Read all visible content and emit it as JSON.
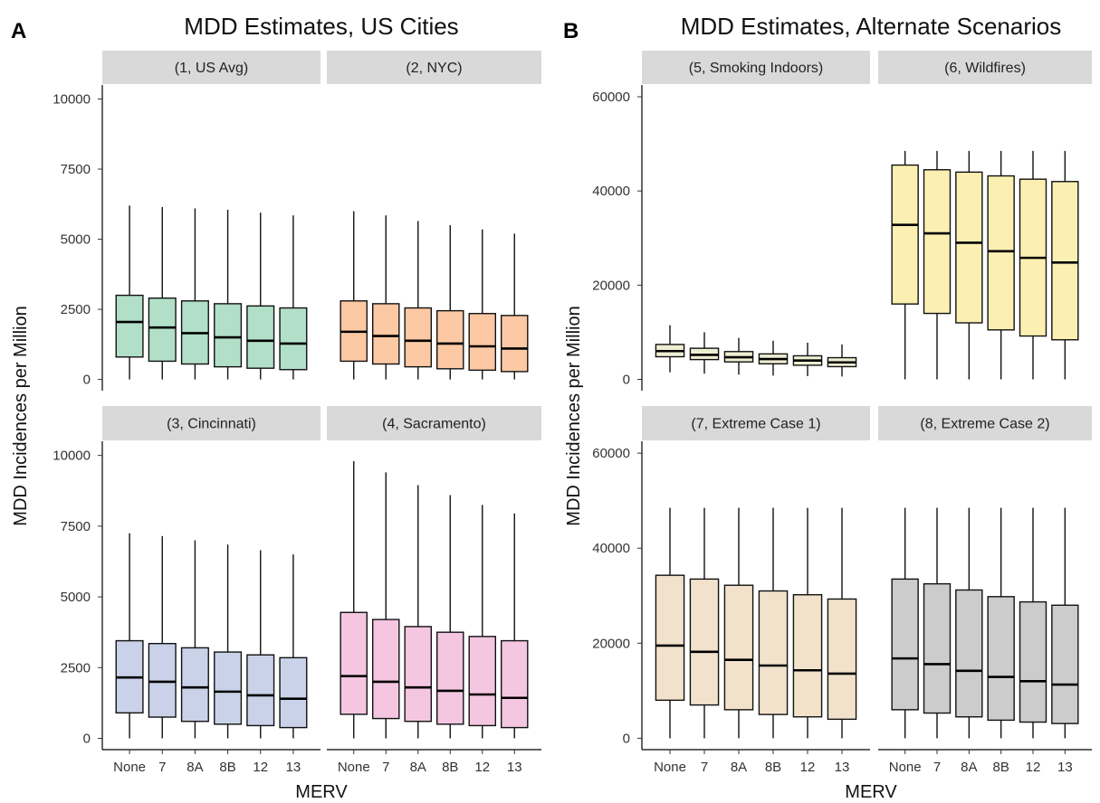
{
  "chart_data": [
    {
      "type": "box",
      "panel_letter": "A",
      "title": "MDD Estimates, US Cities",
      "xlabel": "MERV",
      "ylabel": "MDD Incidences per Million",
      "categories": [
        "None",
        "7",
        "8A",
        "8B",
        "12",
        "13"
      ],
      "ylim": [
        -400,
        10500
      ],
      "yticks": [
        0,
        2500,
        5000,
        7500,
        10000
      ],
      "ytick_labels": [
        "0",
        "2500",
        "5000",
        "7500",
        "10000"
      ],
      "grid": false,
      "facets": [
        {
          "label": "(1, US Avg)",
          "fill": "#b2dfc8",
          "boxes": [
            {
              "low": 0,
              "q1": 800,
              "median": 2050,
              "q3": 3000,
              "high": 6200
            },
            {
              "low": 0,
              "q1": 650,
              "median": 1850,
              "q3": 2900,
              "high": 6150
            },
            {
              "low": 0,
              "q1": 550,
              "median": 1650,
              "q3": 2800,
              "high": 6100
            },
            {
              "low": 0,
              "q1": 450,
              "median": 1500,
              "q3": 2700,
              "high": 6050
            },
            {
              "low": 0,
              "q1": 400,
              "median": 1380,
              "q3": 2620,
              "high": 5950
            },
            {
              "low": 0,
              "q1": 350,
              "median": 1280,
              "q3": 2550,
              "high": 5850
            }
          ]
        },
        {
          "label": "(2, NYC)",
          "fill": "#fcc9a4",
          "boxes": [
            {
              "low": 0,
              "q1": 650,
              "median": 1700,
              "q3": 2800,
              "high": 6000
            },
            {
              "low": 0,
              "q1": 550,
              "median": 1550,
              "q3": 2700,
              "high": 5850
            },
            {
              "low": 0,
              "q1": 450,
              "median": 1380,
              "q3": 2550,
              "high": 5650
            },
            {
              "low": 0,
              "q1": 380,
              "median": 1280,
              "q3": 2450,
              "high": 5500
            },
            {
              "low": 0,
              "q1": 330,
              "median": 1180,
              "q3": 2350,
              "high": 5350
            },
            {
              "low": 0,
              "q1": 280,
              "median": 1100,
              "q3": 2280,
              "high": 5200
            }
          ]
        },
        {
          "label": "(3, Cincinnati)",
          "fill": "#c9d2e8",
          "boxes": [
            {
              "low": 0,
              "q1": 900,
              "median": 2150,
              "q3": 3450,
              "high": 7250
            },
            {
              "low": 0,
              "q1": 750,
              "median": 2000,
              "q3": 3350,
              "high": 7150
            },
            {
              "low": 0,
              "q1": 600,
              "median": 1800,
              "q3": 3200,
              "high": 7000
            },
            {
              "low": 0,
              "q1": 500,
              "median": 1650,
              "q3": 3050,
              "high": 6850
            },
            {
              "low": 0,
              "q1": 450,
              "median": 1520,
              "q3": 2950,
              "high": 6650
            },
            {
              "low": 0,
              "q1": 380,
              "median": 1400,
              "q3": 2850,
              "high": 6500
            }
          ]
        },
        {
          "label": "(4, Sacramento)",
          "fill": "#f4c6e1",
          "boxes": [
            {
              "low": 0,
              "q1": 850,
              "median": 2200,
              "q3": 4450,
              "high": 9800
            },
            {
              "low": 0,
              "q1": 700,
              "median": 2000,
              "q3": 4200,
              "high": 9400
            },
            {
              "low": 0,
              "q1": 600,
              "median": 1800,
              "q3": 3950,
              "high": 8950
            },
            {
              "low": 0,
              "q1": 500,
              "median": 1680,
              "q3": 3750,
              "high": 8600
            },
            {
              "low": 0,
              "q1": 450,
              "median": 1550,
              "q3": 3600,
              "high": 8250
            },
            {
              "low": 0,
              "q1": 380,
              "median": 1430,
              "q3": 3450,
              "high": 7950
            }
          ]
        }
      ]
    },
    {
      "type": "box",
      "panel_letter": "B",
      "title": "MDD Estimates, Alternate Scenarios",
      "xlabel": "MERV",
      "ylabel": "MDD Incidences per Million",
      "categories": [
        "None",
        "7",
        "8A",
        "8B",
        "12",
        "13"
      ],
      "ylim": [
        -2400,
        62500
      ],
      "yticks": [
        0,
        20000,
        40000,
        60000
      ],
      "ytick_labels": [
        "0",
        "20000",
        "40000",
        "60000"
      ],
      "grid": false,
      "facets": [
        {
          "label": "(5, Smoking Indoors)",
          "fill": "#eeeed3",
          "boxes": [
            {
              "low": 1500,
              "q1": 4800,
              "median": 6000,
              "q3": 7400,
              "high": 11500
            },
            {
              "low": 1200,
              "q1": 4200,
              "median": 5200,
              "q3": 6600,
              "high": 10000
            },
            {
              "low": 1000,
              "q1": 3700,
              "median": 4700,
              "q3": 5900,
              "high": 8800
            },
            {
              "low": 800,
              "q1": 3300,
              "median": 4300,
              "q3": 5400,
              "high": 8200
            },
            {
              "low": 700,
              "q1": 3000,
              "median": 4000,
              "q3": 5000,
              "high": 7800
            },
            {
              "low": 600,
              "q1": 2700,
              "median": 3600,
              "q3": 4600,
              "high": 7400
            }
          ]
        },
        {
          "label": "(6, Wildfires)",
          "fill": "#fbf0b2",
          "boxes": [
            {
              "low": 0,
              "q1": 16000,
              "median": 32800,
              "q3": 45500,
              "high": 48500
            },
            {
              "low": 0,
              "q1": 14000,
              "median": 31000,
              "q3": 44500,
              "high": 48500
            },
            {
              "low": 0,
              "q1": 12000,
              "median": 29000,
              "q3": 44000,
              "high": 48500
            },
            {
              "low": 0,
              "q1": 10500,
              "median": 27200,
              "q3": 43200,
              "high": 48500
            },
            {
              "low": 0,
              "q1": 9200,
              "median": 25800,
              "q3": 42500,
              "high": 48500
            },
            {
              "low": 0,
              "q1": 8400,
              "median": 24800,
              "q3": 42000,
              "high": 48500
            }
          ]
        },
        {
          "label": "(7, Extreme Case 1)",
          "fill": "#f2e2cb",
          "boxes": [
            {
              "low": 0,
              "q1": 8000,
              "median": 19500,
              "q3": 34300,
              "high": 48500
            },
            {
              "low": 0,
              "q1": 7000,
              "median": 18200,
              "q3": 33500,
              "high": 48500
            },
            {
              "low": 0,
              "q1": 6000,
              "median": 16500,
              "q3": 32200,
              "high": 48500
            },
            {
              "low": 0,
              "q1": 5000,
              "median": 15300,
              "q3": 31000,
              "high": 48500
            },
            {
              "low": 0,
              "q1": 4500,
              "median": 14300,
              "q3": 30200,
              "high": 48500
            },
            {
              "low": 0,
              "q1": 4000,
              "median": 13600,
              "q3": 29300,
              "high": 48500
            }
          ]
        },
        {
          "label": "(8, Extreme Case 2)",
          "fill": "#cccccc",
          "boxes": [
            {
              "low": 0,
              "q1": 6000,
              "median": 16800,
              "q3": 33500,
              "high": 48500
            },
            {
              "low": 0,
              "q1": 5300,
              "median": 15600,
              "q3": 32500,
              "high": 48500
            },
            {
              "low": 0,
              "q1": 4500,
              "median": 14200,
              "q3": 31200,
              "high": 48500
            },
            {
              "low": 0,
              "q1": 3800,
              "median": 12900,
              "q3": 29800,
              "high": 48500
            },
            {
              "low": 0,
              "q1": 3400,
              "median": 12000,
              "q3": 28700,
              "high": 48500
            },
            {
              "low": 0,
              "q1": 3100,
              "median": 11300,
              "q3": 28000,
              "high": 48500
            }
          ]
        }
      ]
    }
  ]
}
